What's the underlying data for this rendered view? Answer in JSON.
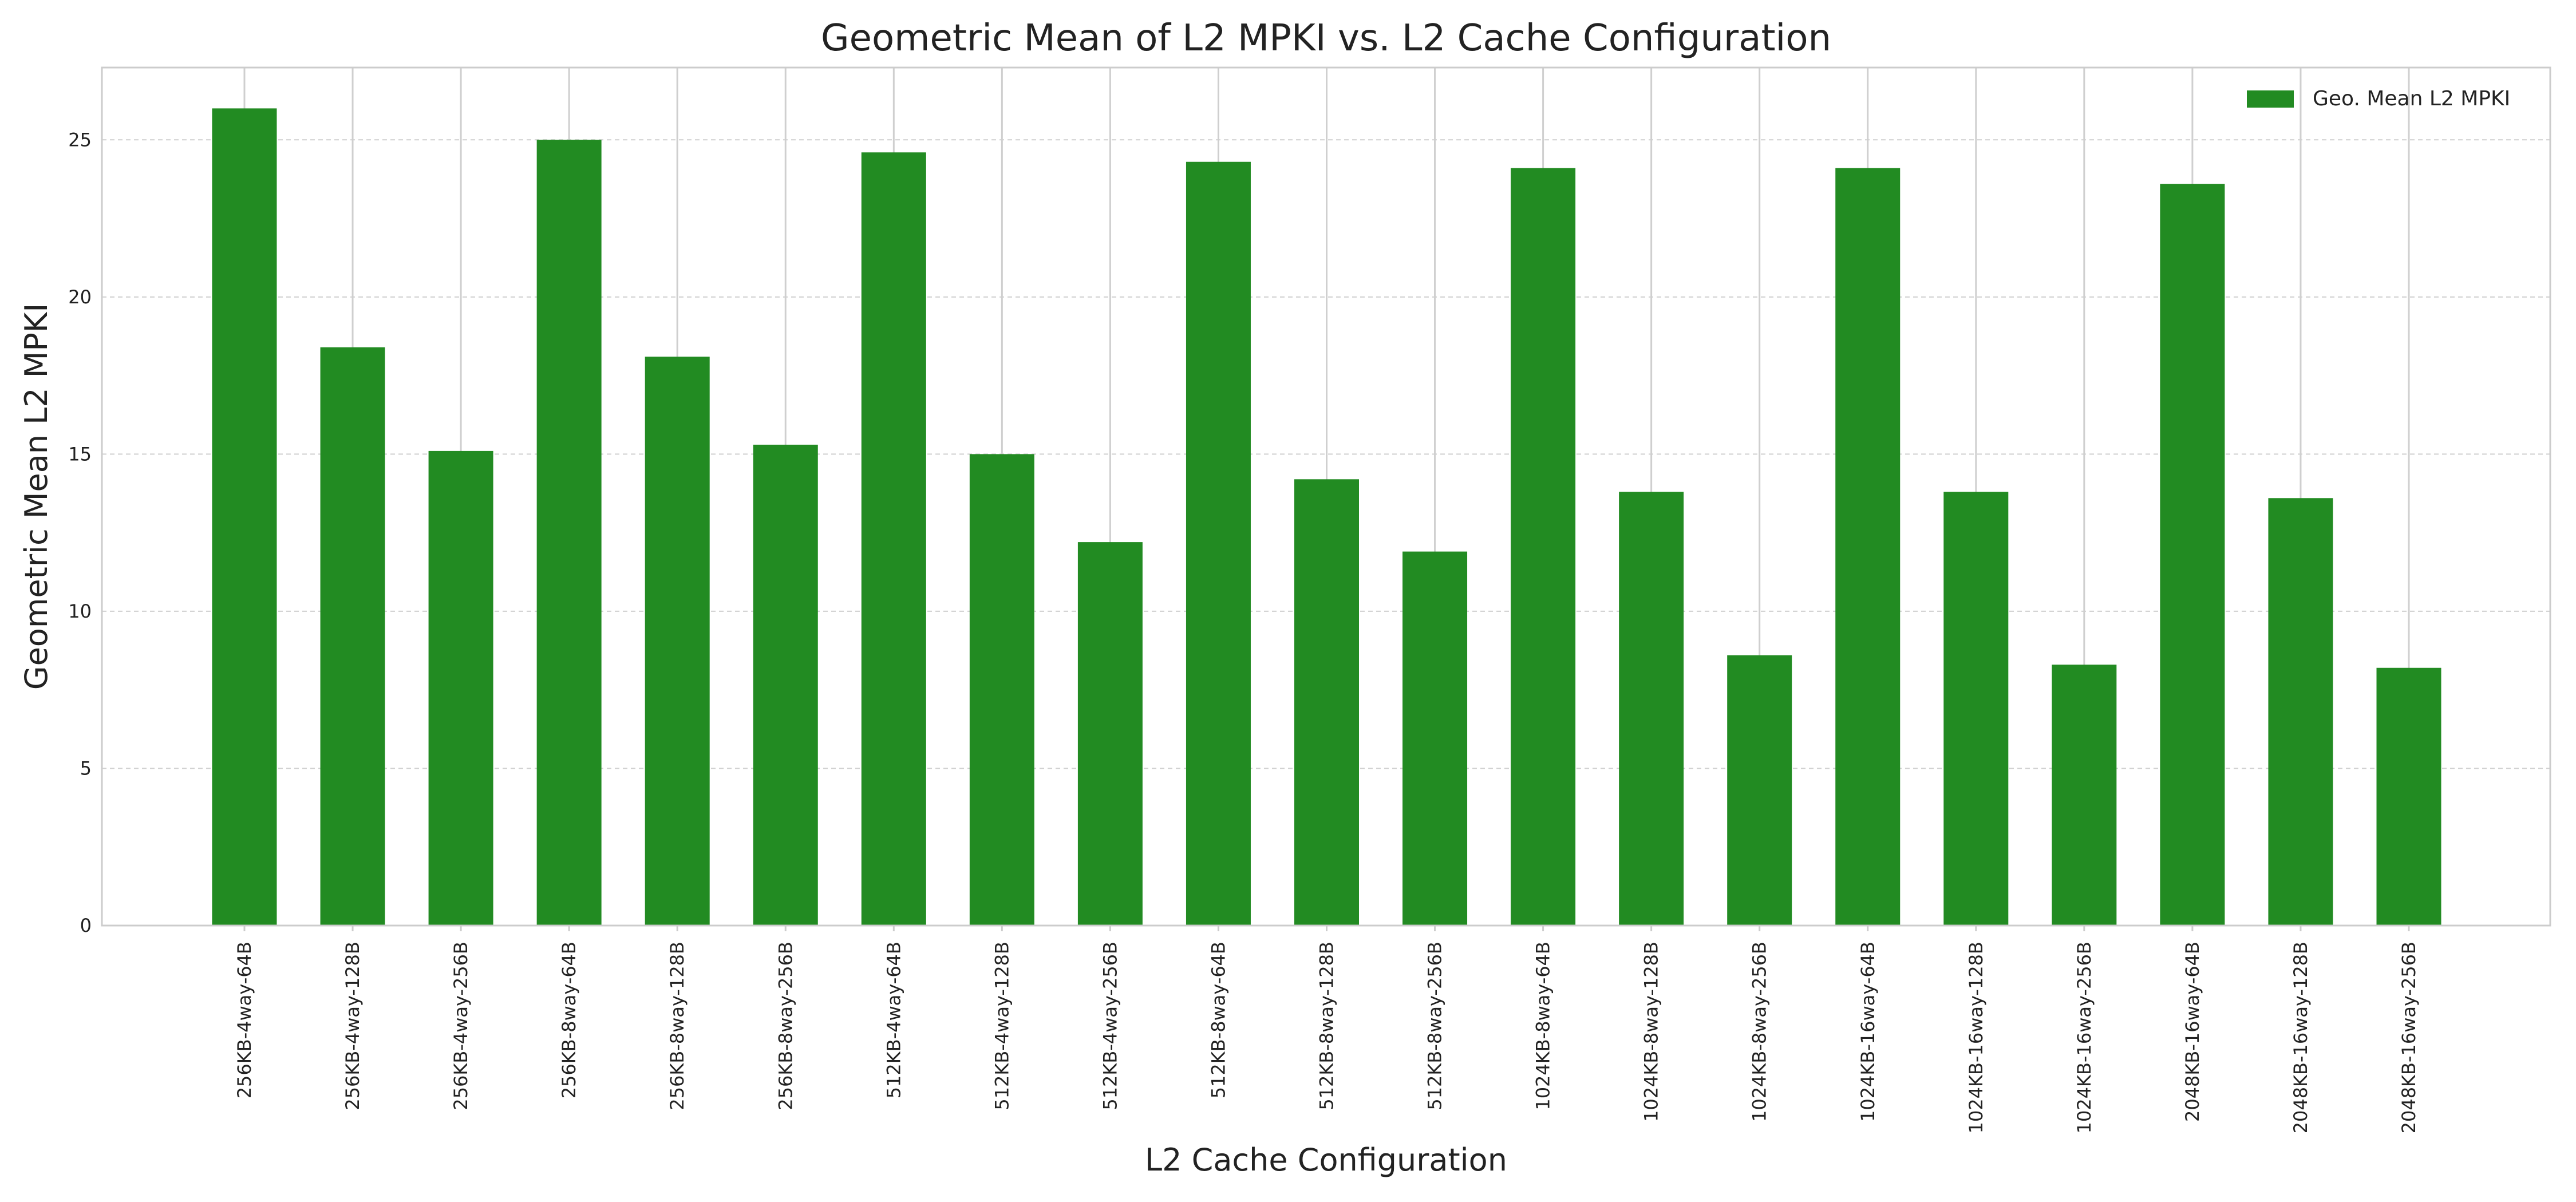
{
  "chart_data": {
    "type": "bar",
    "title": "Geometric Mean of L2 MPKI vs. L2 Cache Configuration",
    "xlabel": "L2 Cache Configuration",
    "ylabel": "Geometric Mean L2 MPKI",
    "ylim": [
      0,
      27.3
    ],
    "yticks": [
      0,
      5,
      10,
      15,
      20,
      25
    ],
    "grid": true,
    "legend_position": "top-right",
    "categories": [
      "256KB-4way-64B",
      "256KB-4way-128B",
      "256KB-4way-256B",
      "256KB-8way-64B",
      "256KB-8way-128B",
      "256KB-8way-256B",
      "512KB-4way-64B",
      "512KB-4way-128B",
      "512KB-4way-256B",
      "512KB-8way-64B",
      "512KB-8way-128B",
      "512KB-8way-256B",
      "1024KB-8way-64B",
      "1024KB-8way-128B",
      "1024KB-8way-256B",
      "1024KB-16way-64B",
      "1024KB-16way-128B",
      "1024KB-16way-256B",
      "2048KB-16way-64B",
      "2048KB-16way-128B",
      "2048KB-16way-256B"
    ],
    "series": [
      {
        "name": "Geo. Mean L2 MPKI",
        "color": "#228b22",
        "values": [
          26.0,
          18.4,
          15.1,
          25.0,
          18.1,
          15.3,
          24.6,
          15.0,
          12.2,
          24.3,
          14.2,
          11.9,
          24.1,
          13.8,
          8.6,
          24.1,
          13.8,
          8.3,
          23.6,
          13.6,
          8.2
        ]
      }
    ]
  }
}
